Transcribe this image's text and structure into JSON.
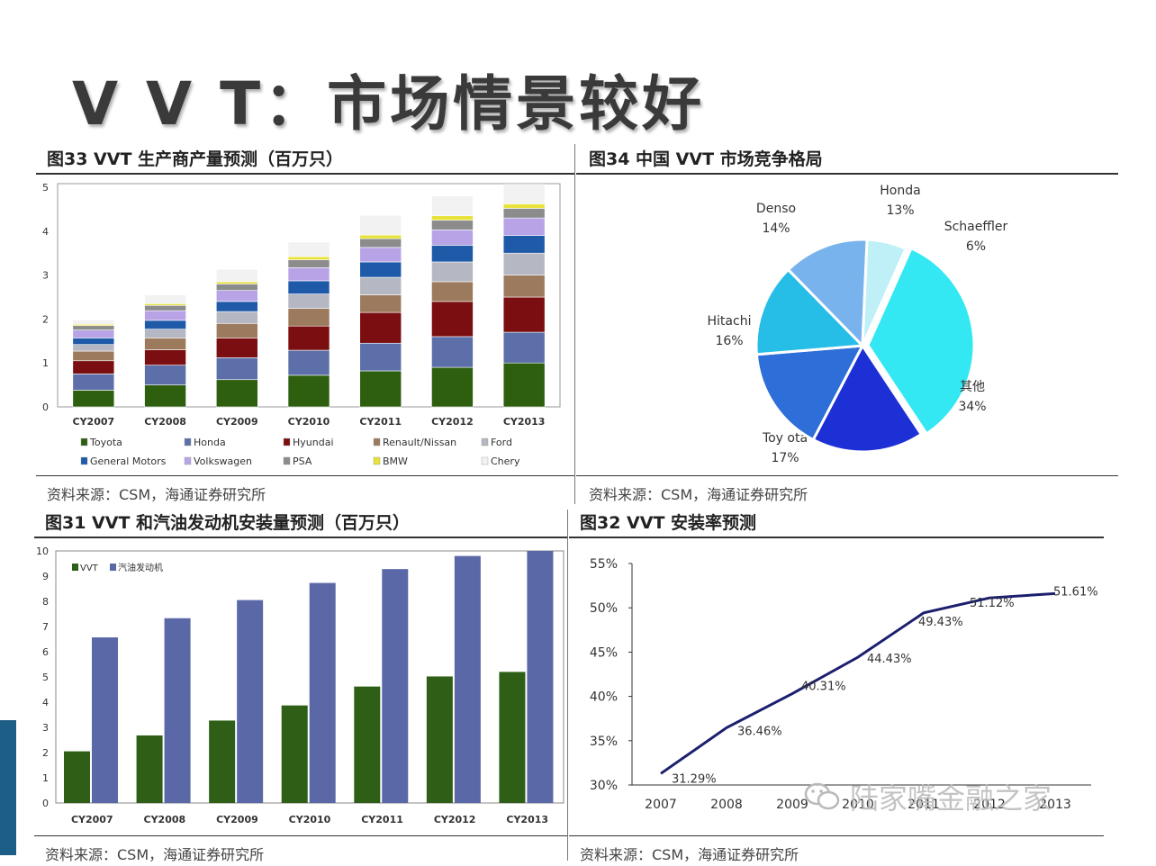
{
  "page": {
    "title": "V V T：市场情景较好",
    "watermark": "陆家嘴金融之家"
  },
  "panels": {
    "p33": {
      "title": "图33 VVT 生产商产量预测（百万只）",
      "source": "资料来源：CSM，海通证券研究所"
    },
    "p34": {
      "title": "图34 中国 VVT 市场竞争格局",
      "source": "资料来源：CSM，海通证券研究所"
    },
    "p31": {
      "title": "图31 VVT 和汽油发动机安装量预测（百万只）",
      "source": "资料来源：CSM，海通证券研究所"
    },
    "p32": {
      "title": "图32 VVT 安装率预测",
      "source": "资料来源：CSM，海通证券研究所"
    }
  },
  "colors": {
    "Toyota": "#2e5f0f",
    "Honda": "#5c6fa8",
    "Hyundai": "#7a0e10",
    "Renault/Nissan": "#9c7a5e",
    "Ford": "#b5b7c2",
    "General Motors": "#1f5aa8",
    "Volkswagen": "#b8a3e6",
    "PSA": "#8c8c8c",
    "BMW": "#e8e23a",
    "Chery": "#f2f2f2",
    "vvt": "#2f5f16",
    "engine": "#5b68a8",
    "line": "#1b1f6e",
    "pie_other": "#33e8f2",
    "pie_toyota": "#1d30d6",
    "pie_hitachi": "#2e6ed8",
    "pie_denso": "#26bde6",
    "pie_honda": "#79b3ee",
    "pie_schaeffler": "#bff0f8"
  },
  "chart_data": [
    {
      "id": "fig33",
      "type": "bar",
      "stacked": true,
      "categories": [
        "CY2007",
        "CY2008",
        "CY2009",
        "CY2010",
        "CY2011",
        "CY2012",
        "CY2013"
      ],
      "ylim": [
        0,
        5
      ],
      "yticks": [
        "0",
        "1",
        "2",
        "3",
        "4",
        "5"
      ],
      "legend_position": "bottom",
      "series": [
        {
          "name": "Toyota",
          "values": [
            0.38,
            0.5,
            0.62,
            0.72,
            0.82,
            0.9,
            1.0
          ]
        },
        {
          "name": "Honda",
          "values": [
            0.37,
            0.45,
            0.5,
            0.57,
            0.63,
            0.7,
            0.7
          ]
        },
        {
          "name": "Hyundai",
          "values": [
            0.3,
            0.35,
            0.45,
            0.55,
            0.7,
            0.8,
            0.8
          ]
        },
        {
          "name": "Renault/Nissan",
          "values": [
            0.22,
            0.27,
            0.33,
            0.4,
            0.4,
            0.45,
            0.5
          ]
        },
        {
          "name": "Ford",
          "values": [
            0.15,
            0.2,
            0.27,
            0.33,
            0.4,
            0.45,
            0.5
          ]
        },
        {
          "name": "General Motors",
          "values": [
            0.15,
            0.2,
            0.23,
            0.3,
            0.35,
            0.38,
            0.4
          ]
        },
        {
          "name": "Volkswagen",
          "values": [
            0.18,
            0.22,
            0.25,
            0.3,
            0.33,
            0.35,
            0.4
          ]
        },
        {
          "name": "PSA",
          "values": [
            0.1,
            0.12,
            0.15,
            0.18,
            0.2,
            0.22,
            0.22
          ]
        },
        {
          "name": "BMW",
          "values": [
            0.03,
            0.04,
            0.05,
            0.07,
            0.08,
            0.1,
            0.1
          ]
        },
        {
          "name": "Chery",
          "values": [
            0.1,
            0.2,
            0.28,
            0.33,
            0.45,
            0.45,
            0.45
          ]
        }
      ]
    },
    {
      "id": "fig34",
      "type": "pie",
      "slices": [
        {
          "name": "其他",
          "label": "34%",
          "value": 34,
          "key": "pie_other"
        },
        {
          "name": "Toy ota",
          "label": "17%",
          "value": 17,
          "key": "pie_toyota"
        },
        {
          "name": "Hitachi",
          "label": "16%",
          "value": 16,
          "key": "pie_hitachi"
        },
        {
          "name": "Denso",
          "label": "14%",
          "value": 14,
          "key": "pie_denso"
        },
        {
          "name": "Honda",
          "label": "13%",
          "value": 13,
          "key": "pie_honda"
        },
        {
          "name": "Schaeffler",
          "label": "6%",
          "value": 6,
          "key": "pie_schaeffler"
        }
      ]
    },
    {
      "id": "fig31",
      "type": "bar",
      "categories": [
        "CY2007",
        "CY2008",
        "CY2009",
        "CY2010",
        "CY2011",
        "CY2012",
        "CY2013"
      ],
      "ylim": [
        0,
        10
      ],
      "yticks": [
        "0",
        "1",
        "2",
        "3",
        "4",
        "5",
        "6",
        "7",
        "8",
        "9",
        "10"
      ],
      "legend_position": "top-left",
      "series": [
        {
          "name": "VVT",
          "values": [
            2.05,
            2.68,
            3.27,
            3.87,
            4.62,
            5.02,
            5.2
          ]
        },
        {
          "name": "汽油发动机",
          "values": [
            6.57,
            7.33,
            8.05,
            8.73,
            9.28,
            9.8,
            10.0
          ]
        }
      ]
    },
    {
      "id": "fig32",
      "type": "line",
      "x": [
        "2007",
        "2008",
        "2009",
        "2010",
        "2011",
        "2012",
        "2013"
      ],
      "ylim": [
        30,
        55
      ],
      "yticks": [
        "30%",
        "35%",
        "40%",
        "45%",
        "50%",
        "55%"
      ],
      "series": [
        {
          "values": [
            31.29,
            36.46,
            40.31,
            44.43,
            49.43,
            51.12,
            51.61
          ],
          "labels": [
            "31.29%",
            "36.46%",
            "40.31%",
            "44.43%",
            "49.43%",
            "51.12%",
            "51.61%"
          ]
        }
      ]
    }
  ]
}
